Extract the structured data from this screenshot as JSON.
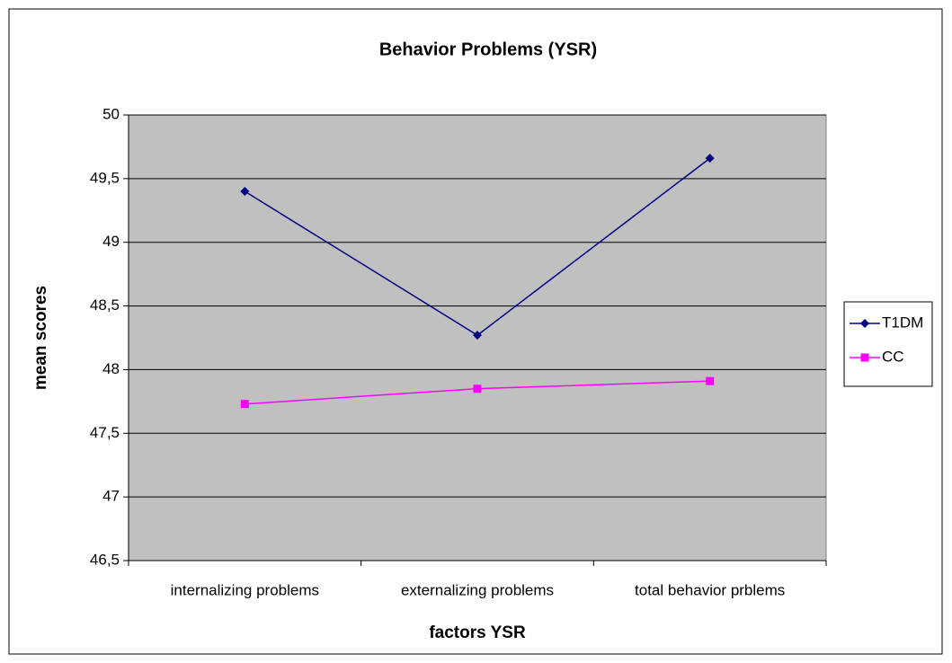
{
  "chart_data": {
    "type": "line",
    "title": "Behavior Problems (YSR)",
    "x_label": "factors YSR",
    "y_label": "mean scores",
    "categories": [
      "internalizing problems",
      "externalizing problems",
      "total behavior prblems"
    ],
    "series": [
      {
        "name": "T1DM",
        "color": "#000080",
        "marker": "diamond",
        "values": [
          49.4,
          48.27,
          49.66
        ]
      },
      {
        "name": "CC",
        "color": "#ff00ff",
        "marker": "square",
        "values": [
          47.73,
          47.85,
          47.91
        ]
      }
    ],
    "ylim": [
      46.5,
      50
    ],
    "yticks": [
      {
        "value": 46.5,
        "label": "46,5"
      },
      47,
      {
        "value": 47.5,
        "label": "47,5"
      },
      48,
      {
        "value": 48.5,
        "label": "48,5"
      },
      49,
      {
        "value": 49.5,
        "label": "49,5"
      },
      50
    ],
    "grid": true,
    "legend": "right",
    "plot_background": "#c0c0c0"
  }
}
